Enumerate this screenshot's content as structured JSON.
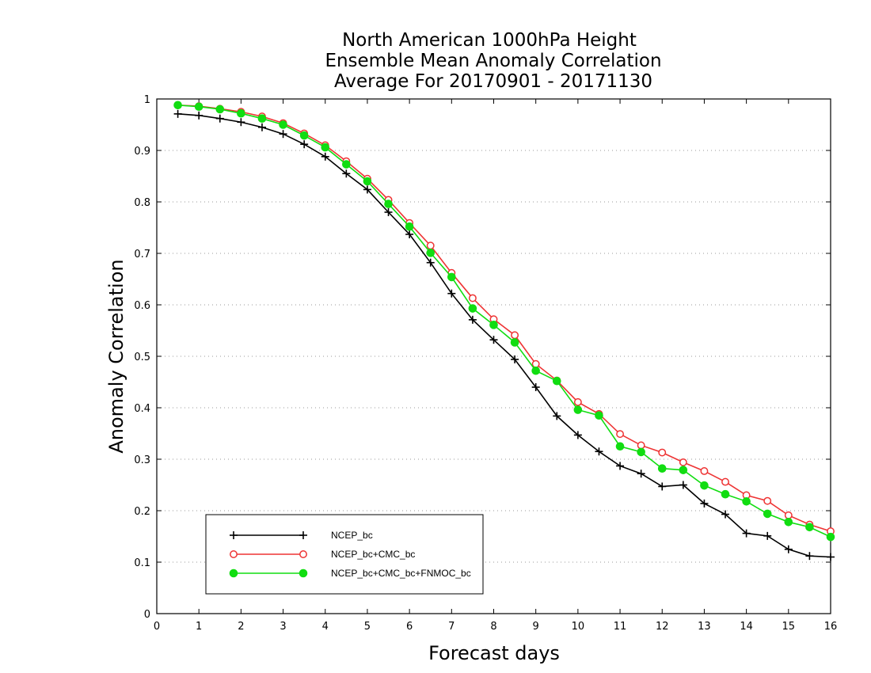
{
  "chart_data": {
    "type": "line",
    "title": [
      "North American 1000hPa Height",
      "Ensemble Mean Anomaly Correlation",
      "Average For 20170901 - 20171130"
    ],
    "xlabel": "Forecast days",
    "ylabel": "Anomaly Correlation",
    "xlim": [
      0,
      16
    ],
    "ylim": [
      0,
      1
    ],
    "xticks": [
      "0",
      "1",
      "2",
      "3",
      "4",
      "5",
      "6",
      "7",
      "8",
      "9",
      "10",
      "11",
      "12",
      "13",
      "14",
      "15",
      "16"
    ],
    "yticks": [
      "0",
      "0.1",
      "0.2",
      "0.3",
      "0.4",
      "0.5",
      "0.6",
      "0.7",
      "0.8",
      "0.9",
      "1"
    ],
    "grid": "horizontal dotted",
    "legend_position": "bottom-left",
    "x": [
      0.5,
      1,
      1.5,
      2,
      2.5,
      3,
      3.5,
      4,
      4.5,
      5,
      5.5,
      6,
      6.5,
      7,
      7.5,
      8,
      8.5,
      9,
      9.5,
      10,
      10.5,
      11,
      11.5,
      12,
      12.5,
      13,
      13.5,
      14,
      14.5,
      15,
      15.5,
      16
    ],
    "series": [
      {
        "name": "NCEP_bc",
        "color": "#000000",
        "marker": "plus",
        "values": [
          0.971,
          0.968,
          0.962,
          0.955,
          0.945,
          0.932,
          0.912,
          0.888,
          0.855,
          0.824,
          0.78,
          0.737,
          0.682,
          0.622,
          0.571,
          0.532,
          0.494,
          0.44,
          0.384,
          0.347,
          0.315,
          0.287,
          0.272,
          0.247,
          0.25,
          0.214,
          0.193,
          0.156,
          0.151,
          0.125,
          0.112,
          0.11
        ]
      },
      {
        "name": "NCEP_bc+CMC_bc",
        "color": "#ee3333",
        "marker": "open-circle",
        "values": [
          0.988,
          0.986,
          0.981,
          0.975,
          0.966,
          0.953,
          0.933,
          0.91,
          0.879,
          0.845,
          0.804,
          0.759,
          0.715,
          0.662,
          0.613,
          0.572,
          0.541,
          0.485,
          0.453,
          0.411,
          0.388,
          0.349,
          0.327,
          0.313,
          0.294,
          0.277,
          0.256,
          0.23,
          0.219,
          0.191,
          0.173,
          0.16
        ]
      },
      {
        "name": "NCEP_bc+CMC_bc+FNMOC_bc",
        "color": "#11dd11",
        "marker": "filled-circle",
        "values": [
          0.988,
          0.985,
          0.98,
          0.972,
          0.962,
          0.95,
          0.929,
          0.906,
          0.873,
          0.84,
          0.796,
          0.752,
          0.701,
          0.654,
          0.593,
          0.561,
          0.527,
          0.472,
          0.452,
          0.396,
          0.385,
          0.325,
          0.314,
          0.282,
          0.279,
          0.249,
          0.232,
          0.218,
          0.194,
          0.178,
          0.168,
          0.149
        ]
      }
    ]
  }
}
